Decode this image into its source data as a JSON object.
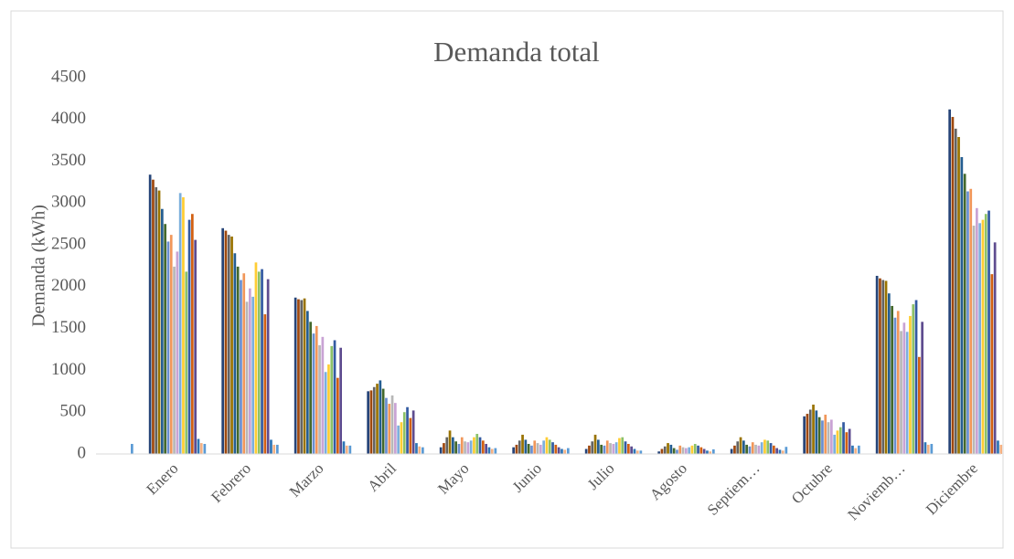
{
  "chart_data": {
    "type": "bar",
    "title": "Demanda total",
    "y_label": "Demanda (kWh)",
    "categories": [
      "Enero",
      "Febrero",
      "Marzo",
      "Abril",
      "Mayo",
      "Junio",
      "Julio",
      "Agosto",
      "Septiem…",
      "Octubre",
      "Noviemb…",
      "Diciembre"
    ],
    "ylim": [
      0,
      4500
    ],
    "yticks": [
      0,
      500,
      1000,
      1500,
      2000,
      2500,
      3000,
      3500,
      4000,
      4500
    ],
    "grid": false,
    "series": [
      {
        "color": "#5b9bd5",
        "values": [
          120,
          120,
          110,
          100,
          80,
          70,
          70,
          40,
          55,
          85,
          100,
          120
        ]
      },
      {
        "color": "#264478",
        "values": [
          3340,
          2700,
          1870,
          750,
          80,
          80,
          60,
          30,
          60,
          450,
          2130,
          4120
        ]
      },
      {
        "color": "#9e480e",
        "values": [
          3280,
          2670,
          1850,
          760,
          130,
          110,
          100,
          60,
          100,
          480,
          2100,
          4030
        ]
      },
      {
        "color": "#636363",
        "values": [
          3190,
          2620,
          1840,
          800,
          200,
          160,
          150,
          90,
          150,
          530,
          2080,
          3890
        ]
      },
      {
        "color": "#997300",
        "values": [
          3150,
          2600,
          1860,
          840,
          280,
          230,
          230,
          130,
          200,
          590,
          2070,
          3790
        ]
      },
      {
        "color": "#255e91",
        "values": [
          2930,
          2400,
          1710,
          880,
          200,
          170,
          170,
          110,
          160,
          520,
          1920,
          3550
        ]
      },
      {
        "color": "#43682b",
        "values": [
          2750,
          2240,
          1580,
          780,
          150,
          120,
          110,
          70,
          110,
          440,
          1770,
          3350
        ]
      },
      {
        "color": "#698ed0",
        "values": [
          2540,
          2080,
          1440,
          670,
          120,
          100,
          100,
          50,
          90,
          400,
          1630,
          3140
        ]
      },
      {
        "color": "#f1975a",
        "values": [
          2620,
          2160,
          1530,
          600,
          200,
          160,
          160,
          100,
          140,
          470,
          1710,
          3170
        ]
      },
      {
        "color": "#b7b7b7",
        "values": [
          2240,
          1820,
          1300,
          700,
          150,
          130,
          130,
          80,
          110,
          380,
          1470,
          2730
        ]
      },
      {
        "color": "#c9a3d4",
        "values": [
          2420,
          1980,
          1400,
          610,
          140,
          110,
          120,
          70,
          100,
          410,
          1570,
          2940
        ]
      },
      {
        "color": "#7cafdd",
        "values": [
          3120,
          1880,
          980,
          340,
          160,
          160,
          140,
          80,
          140,
          230,
          1460,
          2760
        ]
      },
      {
        "color": "#ffcd33",
        "values": [
          3070,
          2290,
          1070,
          380,
          200,
          200,
          190,
          100,
          170,
          280,
          1650,
          2800
        ]
      },
      {
        "color": "#8cc168",
        "values": [
          2180,
          2180,
          1290,
          500,
          240,
          170,
          200,
          120,
          160,
          320,
          1790,
          2870
        ]
      },
      {
        "color": "#335aa1",
        "values": [
          2800,
          2210,
          1360,
          560,
          200,
          140,
          150,
          100,
          130,
          380,
          1840,
          2910
        ]
      },
      {
        "color": "#d26012",
        "values": [
          2870,
          1670,
          910,
          430,
          160,
          110,
          120,
          80,
          100,
          260,
          1160,
          2150
        ]
      },
      {
        "color": "#5e4c8f",
        "values": [
          2560,
          2090,
          1270,
          520,
          120,
          80,
          90,
          60,
          70,
          300,
          1580,
          2530
        ]
      },
      {
        "color": "#2e75b6",
        "values": [
          180,
          170,
          150,
          130,
          80,
          60,
          60,
          40,
          50,
          100,
          140,
          160
        ]
      },
      {
        "color": "#f4b183",
        "values": [
          130,
          110,
          100,
          90,
          60,
          50,
          40,
          30,
          40,
          70,
          110,
          110
        ]
      }
    ]
  }
}
